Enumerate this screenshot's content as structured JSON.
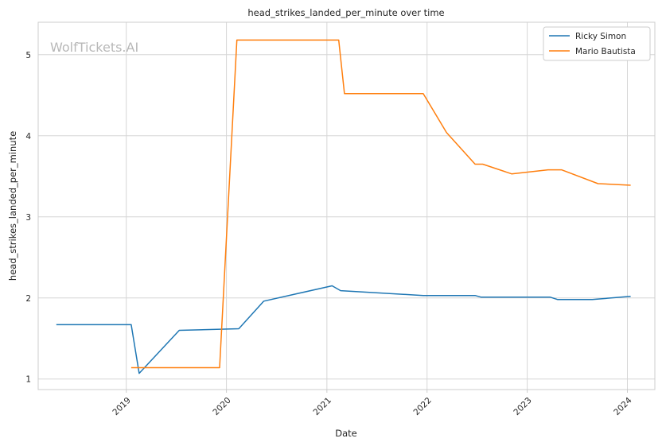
{
  "chart_data": {
    "type": "line",
    "title": "head_strikes_landed_per_minute over time",
    "xlabel": "Date",
    "ylabel": "head_strikes_landed_per_minute",
    "watermark": "WolfTickets.AI",
    "xlim": [
      "2018-02-14",
      "2024-04-10"
    ],
    "ylim": [
      0.87,
      5.4
    ],
    "x_ticks": [
      "2019-01-01",
      "2020-01-01",
      "2021-01-01",
      "2022-01-01",
      "2023-01-01",
      "2024-01-01"
    ],
    "x_tick_labels": [
      "2019",
      "2020",
      "2021",
      "2022",
      "2023",
      "2024"
    ],
    "y_ticks": [
      1,
      2,
      3,
      4,
      5
    ],
    "y_tick_labels": [
      "1",
      "2",
      "3",
      "4",
      "5"
    ],
    "grid": true,
    "legend_position": "top-right",
    "series": [
      {
        "name": "Ricky Simon",
        "color": "#1f77b4",
        "points": [
          {
            "x": "2018-04-21",
            "y": 1.67
          },
          {
            "x": "2019-01-19",
            "y": 1.67
          },
          {
            "x": "2019-02-17",
            "y": 1.07
          },
          {
            "x": "2019-07-13",
            "y": 1.6
          },
          {
            "x": "2020-02-15",
            "y": 1.62
          },
          {
            "x": "2020-05-16",
            "y": 1.96
          },
          {
            "x": "2021-01-20",
            "y": 2.15
          },
          {
            "x": "2021-02-20",
            "y": 2.09
          },
          {
            "x": "2021-12-18",
            "y": 2.03
          },
          {
            "x": "2022-06-25",
            "y": 2.03
          },
          {
            "x": "2022-07-16",
            "y": 2.01
          },
          {
            "x": "2023-03-25",
            "y": 2.01
          },
          {
            "x": "2023-04-22",
            "y": 1.98
          },
          {
            "x": "2023-08-26",
            "y": 1.98
          },
          {
            "x": "2024-01-13",
            "y": 2.02
          }
        ]
      },
      {
        "name": "Mario Bautista",
        "color": "#ff7f0e",
        "points": [
          {
            "x": "2019-01-19",
            "y": 1.14
          },
          {
            "x": "2019-12-07",
            "y": 1.14
          },
          {
            "x": "2020-02-08",
            "y": 5.18
          },
          {
            "x": "2021-02-13",
            "y": 5.18
          },
          {
            "x": "2021-03-06",
            "y": 4.52
          },
          {
            "x": "2021-12-18",
            "y": 4.52
          },
          {
            "x": "2022-03-13",
            "y": 4.04
          },
          {
            "x": "2022-06-25",
            "y": 3.65
          },
          {
            "x": "2022-07-23",
            "y": 3.65
          },
          {
            "x": "2022-11-05",
            "y": 3.53
          },
          {
            "x": "2023-03-18",
            "y": 3.58
          },
          {
            "x": "2023-05-06",
            "y": 3.58
          },
          {
            "x": "2023-09-16",
            "y": 3.41
          },
          {
            "x": "2024-01-13",
            "y": 3.39
          }
        ]
      }
    ]
  }
}
